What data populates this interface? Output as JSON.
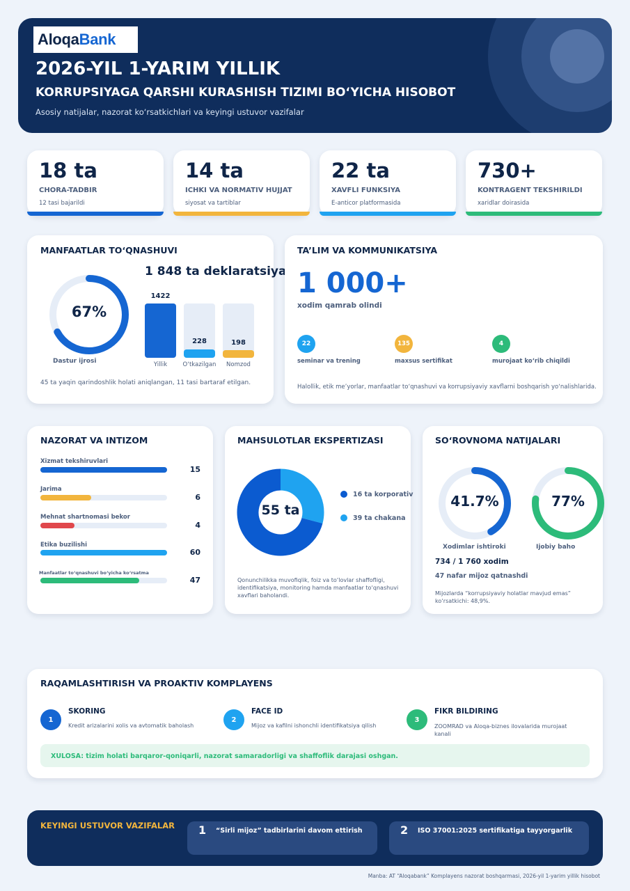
{
  "header": {
    "logo_part1": "Aloqa",
    "logo_part2": "Bank",
    "title": "2026-YIL 1-YARIM YILLIK",
    "subtitle": "KORRUPSIYAGA QARSHI KURASHISH TIZIMI BO‘YICHA HISOBOT",
    "tagline": "Asosiy natijalar, nazorat ko‘rsatkichlari va keyingi ustuvor vazifalar"
  },
  "stats": [
    {
      "value": "18 ta",
      "label": "CHORA-TADBIR",
      "sub": "12 tasi bajarildi",
      "color": "#1566d2"
    },
    {
      "value": "14 ta",
      "label": "ICHKI VA NORMATIV HUJJAT",
      "sub": "siyosat va tartiblar",
      "color": "#f2b53d"
    },
    {
      "value": "22 ta",
      "label": "XAVFLI FUNKSIYA",
      "sub": "E-anticor platformasida",
      "color": "#1fa3f0"
    },
    {
      "value": "730+",
      "label": "KONTRAGENT TEKSHIRILDI",
      "sub": "xaridlar doirasida",
      "color": "#2dbb7a"
    }
  ],
  "conflict": {
    "title": "MANFAATLAR TO‘QNASHUVI",
    "headline": "1 848 ta deklaratsiya",
    "gauge_value": "67%",
    "gauge_fraction": 0.67,
    "gauge_label": "Dastur ijrosi",
    "bars": [
      {
        "value": "1422",
        "label": "Yillik",
        "color": "#1566d2"
      },
      {
        "value": "228",
        "label": "O‘tkazilgan",
        "color": "#1fa3f0"
      },
      {
        "value": "198",
        "label": "Nomzod",
        "color": "#f2b53d"
      }
    ],
    "note": "45 ta yaqin qarindoshlik holati aniqlangan, 11 tasi bartaraf etilgan."
  },
  "training": {
    "title": "TA’LIM VA KOMMUNIKATSIYA",
    "big": "1 000+",
    "big_label": "xodim qamrab olindi",
    "items": [
      {
        "value": "22",
        "label": "seminar va trening",
        "color": "#1fa3f0"
      },
      {
        "value": "135",
        "label": "maxsus sertifikat",
        "color": "#f2b53d"
      },
      {
        "value": "4",
        "label": "murojaat ko‘rib chiqildi",
        "color": "#2dbb7a"
      }
    ],
    "note": "Halollik, etik me’yorlar, manfaatlar to‘qnashuvi va korrupsiyaviy xavflarni boshqarish yo‘nalishlarida."
  },
  "discipline": {
    "title": "NAZORAT VA INTIZOM",
    "items": [
      {
        "label": "Xizmat tekshiruvlari",
        "value": "15",
        "fill": 1.0,
        "color": "#1566d2"
      },
      {
        "label": "Jarima",
        "value": "6",
        "fill": 0.4,
        "color": "#f2b53d"
      },
      {
        "label": "Mehnat shartnomasi bekor",
        "value": "4",
        "fill": 0.27,
        "color": "#e0474c"
      },
      {
        "label": "Etika buzilishi",
        "value": "60",
        "fill": 1.0,
        "color": "#1fa3f0"
      },
      {
        "label": "Manfaatlar to‘qnashuvi bo‘yicha ko‘rsatma",
        "value": "47",
        "fill": 0.78,
        "color": "#2dbb7a"
      }
    ]
  },
  "expertise": {
    "title": "MAHSULOTLAR EKSPERTIZASI",
    "center": "55 ta",
    "legend": [
      {
        "label": "16 ta korporativ",
        "value": 16,
        "color": "#1fa3f0"
      },
      {
        "label": "39 ta chakana",
        "value": 39,
        "color": "#0b5bd0"
      }
    ],
    "note": "Qonunchilikka muvofiqlik, foiz va to‘lovlar shaffofligi, identifikatsiya, monitoring hamda manfaatlar to‘qnashuvi xavflari baholandi."
  },
  "survey": {
    "title": "SO‘ROVNOMA NATIJALARI",
    "g1_value": "41.7%",
    "g1_fraction": 0.417,
    "g1_label": "Xodimlar ishtiroki",
    "g2_value": "77%",
    "g2_fraction": 0.77,
    "g2_label": "Ijobiy baho",
    "line1": "734 / 1 760 xodim",
    "line2": "47 nafar mijoz qatnashdi",
    "note": "Mijozlarda “korrupsiyaviy holatlar mavjud emas” ko‘rsatkichi: 48,9%."
  },
  "digital": {
    "title": "RAQAMLASHTIRISH VA PROAKTIV KOMPLAYENS",
    "steps": [
      {
        "n": "1",
        "title": "SKORING",
        "text": "Kredit arizalarini xolis va avtomatik baholash",
        "color": "#1566d2"
      },
      {
        "n": "2",
        "title": "FACE ID",
        "text": "Mijoz va kafilni ishonchli identifikatsiya qilish",
        "color": "#1fa3f0"
      },
      {
        "n": "3",
        "title": "FIKR BILDIRING",
        "text": "ZOOMRAD va Aloqa-biznes ilovalarida murojaat kanali",
        "color": "#2dbb7a"
      }
    ],
    "conclusion": "XULOSA: tizim holati barqaror-qoniqarli, nazorat samaradorligi va shaffoflik darajasi oshgan."
  },
  "next": {
    "title": "KEYINGI USTUVOR VAZIFALAR",
    "tasks": [
      {
        "n": "1",
        "text": "“Sirli mijoz” tadbirlarini davom ettirish"
      },
      {
        "n": "2",
        "text": "ISO 37001:2025 sertifikatiga tayyorgarlik"
      }
    ]
  },
  "source": "Manba: AT “Aloqabank” Komplayens nazorat boshqarmasi, 2026-yil 1-yarim yillik hisobot"
}
